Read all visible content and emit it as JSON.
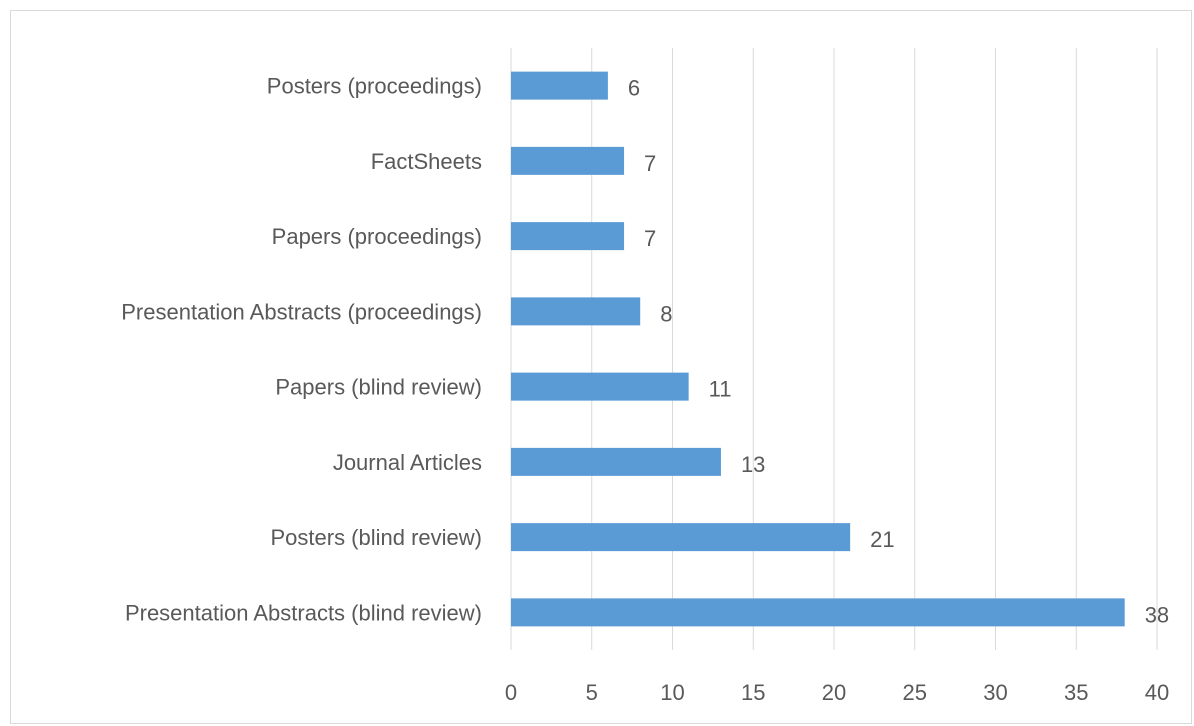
{
  "chart_data": {
    "type": "bar",
    "orientation": "horizontal",
    "title": "",
    "xlabel": "",
    "ylabel": "",
    "categories": [
      "Posters (proceedings)",
      "FactSheets",
      "Papers (proceedings)",
      "Presentation Abstracts (proceedings)",
      "Papers (blind review)",
      "Journal Articles",
      "Posters (blind review)",
      "Presentation Abstracts (blind review)"
    ],
    "values": [
      6,
      7,
      7,
      8,
      11,
      13,
      21,
      38
    ],
    "xlim": [
      0,
      40
    ],
    "xticks": [
      0,
      5,
      10,
      15,
      20,
      25,
      30,
      35,
      40
    ],
    "grid": "vertical",
    "data_labels": true,
    "colors": {
      "bar": "#5b9bd5",
      "grid": "#d9d9d9",
      "text": "#595959"
    }
  }
}
